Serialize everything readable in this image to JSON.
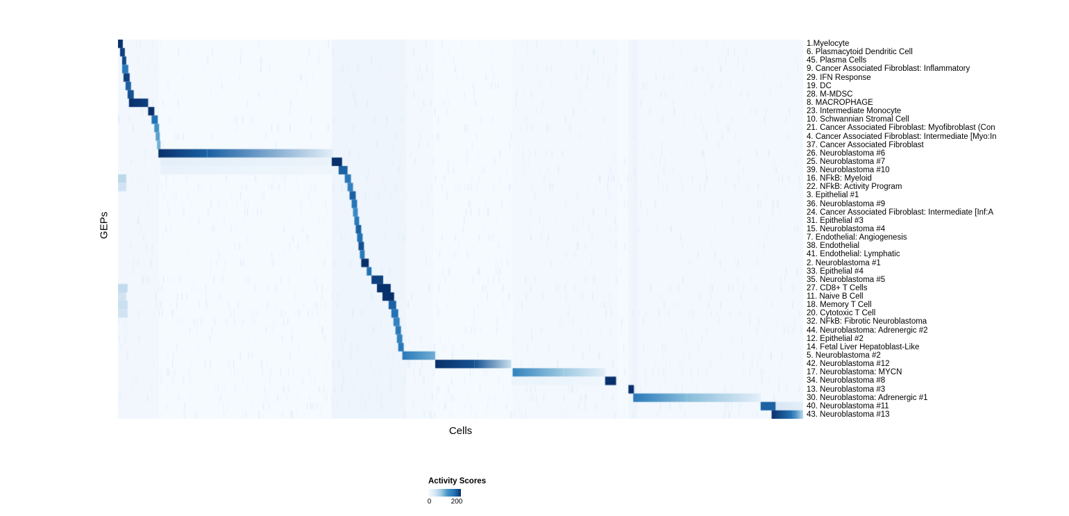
{
  "chart_data": {
    "type": "heatmap",
    "title": "",
    "xlabel": "Cells",
    "ylabel": "GEPs",
    "legend_position": "bottom-center",
    "colorbar": {
      "title": "Activity Scores",
      "min": 0,
      "max": 200,
      "colormap": "Blues",
      "stops": [
        "#f7fbff",
        "#d8e7f5",
        "#9ecae1",
        "#4292c6",
        "#2171b5",
        "#08306b"
      ]
    },
    "x_axis_note": "columns are individual cells ordered by dominant GEP; no tick labels shown",
    "column_hazes": [
      {
        "x0": 0.0,
        "x1": 0.06,
        "alpha": 0.03
      },
      {
        "x0": 0.312,
        "x1": 0.42,
        "alpha": 0.05
      },
      {
        "x0": 0.42,
        "x1": 0.46,
        "alpha": 0.02
      },
      {
        "x0": 0.576,
        "x1": 0.73,
        "alpha": 0.025
      },
      {
        "x0": 0.745,
        "x1": 0.758,
        "alpha": 0.04
      },
      {
        "x0": 0.752,
        "x1": 1.0,
        "alpha": 0.02
      }
    ],
    "rows": [
      {
        "label": "1.Myelocyte",
        "noise": 0.05,
        "segments": [
          [
            0.0,
            0.007,
            200,
            200
          ]
        ]
      },
      {
        "label": "6. Plasmacytoid Dendritic Cell",
        "noise": 0.05,
        "segments": [
          [
            0.003,
            0.01,
            190,
            190
          ]
        ]
      },
      {
        "label": "45. Plasma Cells",
        "noise": 0.05,
        "segments": [
          [
            0.006,
            0.012,
            185,
            185
          ]
        ]
      },
      {
        "label": "9. Cancer Associated Fibroblast: Inflammatory",
        "noise": 0.08,
        "segments": [
          [
            0.006,
            0.015,
            150,
            150
          ]
        ]
      },
      {
        "label": "29. IFN Response",
        "noise": 0.08,
        "segments": [
          [
            0.008,
            0.017,
            190,
            190
          ]
        ]
      },
      {
        "label": "19. DC",
        "noise": 0.06,
        "segments": [
          [
            0.011,
            0.019,
            170,
            170
          ]
        ]
      },
      {
        "label": "28. M-MDSC",
        "noise": 0.06,
        "segments": [
          [
            0.014,
            0.023,
            180,
            180
          ]
        ]
      },
      {
        "label": "8. MACROPHAGE",
        "noise": 0.06,
        "segments": [
          [
            0.016,
            0.044,
            200,
            190
          ]
        ]
      },
      {
        "label": "23. Intermediate Monocyte",
        "noise": 0.06,
        "segments": [
          [
            0.044,
            0.053,
            200,
            200
          ]
        ]
      },
      {
        "label": "10. Schwannian Stromal Cell",
        "noise": 0.08,
        "segments": [
          [
            0.049,
            0.058,
            160,
            160
          ]
        ]
      },
      {
        "label": "21. Cancer Associated Fibroblast: Myofibroblast (Con",
        "noise": 0.06,
        "segments": [
          [
            0.053,
            0.06,
            120,
            120
          ]
        ]
      },
      {
        "label": "4. Cancer Associated Fibroblast: Intermediate [Myo:In",
        "noise": 0.06,
        "segments": [
          [
            0.055,
            0.061,
            110,
            110
          ]
        ]
      },
      {
        "label": "37. Cancer Associated Fibroblast",
        "noise": 0.06,
        "segments": [
          [
            0.057,
            0.062,
            100,
            100
          ]
        ]
      },
      {
        "label": "26. Neuroblastoma #6",
        "noise": 0.08,
        "segments": [
          [
            0.059,
            0.13,
            200,
            170
          ],
          [
            0.13,
            0.314,
            170,
            25
          ]
        ]
      },
      {
        "label": "25. Neuroblastoma #7",
        "noise": 0.08,
        "segments": [
          [
            0.062,
            0.312,
            25,
            15
          ],
          [
            0.312,
            0.327,
            200,
            200
          ]
        ]
      },
      {
        "label": "39. Neuroblastoma #10",
        "noise": 0.08,
        "segments": [
          [
            0.062,
            0.312,
            18,
            10
          ],
          [
            0.322,
            0.335,
            170,
            170
          ]
        ]
      },
      {
        "label": "16. NFkB: Myeloid",
        "noise": 0.12,
        "segments": [
          [
            0.0,
            0.012,
            60,
            60
          ],
          [
            0.331,
            0.34,
            150,
            150
          ]
        ]
      },
      {
        "label": "22. NFkB: Activity Program",
        "noise": 0.15,
        "segments": [
          [
            0.0,
            0.012,
            45,
            45
          ],
          [
            0.335,
            0.343,
            140,
            140
          ]
        ]
      },
      {
        "label": "3. Epithelial #1",
        "noise": 0.06,
        "segments": [
          [
            0.338,
            0.347,
            170,
            170
          ]
        ]
      },
      {
        "label": "36. Neuroblastoma #9",
        "noise": 0.08,
        "segments": [
          [
            0.341,
            0.349,
            155,
            155
          ]
        ]
      },
      {
        "label": "24. Cancer Associated Fibroblast: Intermediate [Inf:A",
        "noise": 0.08,
        "segments": [
          [
            0.343,
            0.35,
            130,
            130
          ]
        ]
      },
      {
        "label": "31. Epithelial #3",
        "noise": 0.06,
        "segments": [
          [
            0.345,
            0.352,
            150,
            150
          ]
        ]
      },
      {
        "label": "15. Neuroblastoma #4",
        "noise": 0.08,
        "segments": [
          [
            0.347,
            0.355,
            170,
            170
          ]
        ]
      },
      {
        "label": "7. Endothelial: Angiogenesis",
        "noise": 0.06,
        "segments": [
          [
            0.349,
            0.357,
            160,
            160
          ]
        ]
      },
      {
        "label": "38. Endothelial",
        "noise": 0.06,
        "segments": [
          [
            0.351,
            0.359,
            180,
            180
          ]
        ]
      },
      {
        "label": "41. Endothelial: Lymphatic",
        "noise": 0.06,
        "segments": [
          [
            0.353,
            0.36,
            150,
            150
          ]
        ]
      },
      {
        "label": "2. Neuroblastoma #1",
        "noise": 0.08,
        "segments": [
          [
            0.355,
            0.366,
            200,
            200
          ]
        ]
      },
      {
        "label": "33. Epithelial #4",
        "noise": 0.06,
        "segments": [
          [
            0.363,
            0.37,
            160,
            160
          ]
        ]
      },
      {
        "label": "35. Neuroblastoma #5",
        "noise": 0.1,
        "segments": [
          [
            0.37,
            0.387,
            190,
            190
          ]
        ]
      },
      {
        "label": "27. CD8+ T Cells",
        "noise": 0.12,
        "segments": [
          [
            0.0,
            0.014,
            55,
            55
          ],
          [
            0.378,
            0.398,
            200,
            200
          ]
        ]
      },
      {
        "label": "11. Naive B Cell",
        "noise": 0.1,
        "segments": [
          [
            0.0,
            0.012,
            45,
            45
          ],
          [
            0.386,
            0.403,
            200,
            200
          ]
        ]
      },
      {
        "label": "18. Memory T Cell",
        "noise": 0.12,
        "segments": [
          [
            0.0,
            0.014,
            50,
            50
          ],
          [
            0.395,
            0.406,
            170,
            170
          ]
        ]
      },
      {
        "label": "20. Cytotoxic T Cell",
        "noise": 0.12,
        "segments": [
          [
            0.0,
            0.014,
            45,
            45
          ],
          [
            0.399,
            0.409,
            160,
            160
          ]
        ]
      },
      {
        "label": "32. NFkB: Fibrotic Neuroblastoma",
        "noise": 0.1,
        "segments": [
          [
            0.402,
            0.411,
            140,
            140
          ]
        ]
      },
      {
        "label": "44. Neuroblastoma: Adrenergic #2",
        "noise": 0.08,
        "segments": [
          [
            0.405,
            0.413,
            150,
            150
          ]
        ]
      },
      {
        "label": "12. Epithelial #2",
        "noise": 0.06,
        "segments": [
          [
            0.407,
            0.415,
            140,
            140
          ]
        ]
      },
      {
        "label": "14. Fetal Liver Hepatoblast-Like",
        "noise": 0.06,
        "segments": [
          [
            0.409,
            0.417,
            150,
            150
          ]
        ]
      },
      {
        "label": "5. Neuroblastoma #2",
        "noise": 0.08,
        "segments": [
          [
            0.415,
            0.463,
            150,
            100
          ]
        ]
      },
      {
        "label": "42. Neuroblastoma #12",
        "noise": 0.1,
        "segments": [
          [
            0.463,
            0.52,
            200,
            180
          ],
          [
            0.52,
            0.574,
            180,
            50
          ]
        ]
      },
      {
        "label": "17. Neuroblastoma: MYCN",
        "noise": 0.15,
        "segments": [
          [
            0.576,
            0.65,
            140,
            80
          ],
          [
            0.65,
            0.711,
            80,
            25
          ]
        ]
      },
      {
        "label": "34. Neuroblastoma #8",
        "noise": 0.1,
        "segments": [
          [
            0.576,
            0.705,
            15,
            10
          ],
          [
            0.711,
            0.727,
            200,
            200
          ]
        ]
      },
      {
        "label": "13. Neuroblastoma #3",
        "noise": 0.12,
        "segments": [
          [
            0.745,
            0.753,
            200,
            200
          ]
        ]
      },
      {
        "label": "30. Neuroblastoma: Adrenergic #1",
        "noise": 0.15,
        "segments": [
          [
            0.752,
            0.83,
            150,
            90
          ],
          [
            0.83,
            0.938,
            90,
            25
          ]
        ]
      },
      {
        "label": "40. Neuroblastoma #11",
        "noise": 0.12,
        "segments": [
          [
            0.938,
            0.96,
            170,
            170
          ],
          [
            0.96,
            1.0,
            40,
            25
          ]
        ]
      },
      {
        "label": "43. Neuroblastoma #13",
        "noise": 0.12,
        "segments": [
          [
            0.954,
            0.985,
            200,
            150
          ],
          [
            0.985,
            1.0,
            150,
            60
          ]
        ]
      }
    ]
  }
}
